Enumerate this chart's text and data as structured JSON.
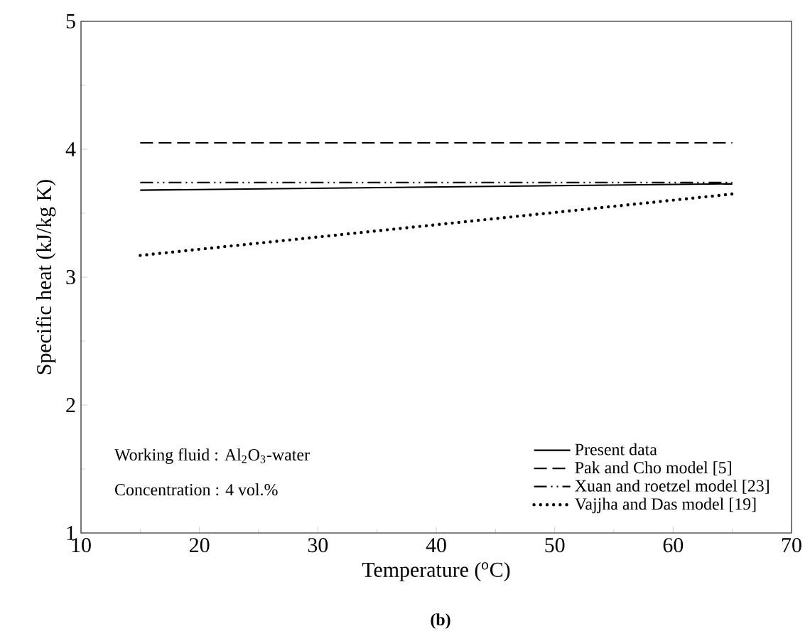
{
  "chart_data": {
    "type": "line",
    "xlabel": "Temperature ($^{o}$C)",
    "ylabel": "Specific heat (kJ/kg K)",
    "annotations": [
      "Working fluid : Al$_{2}$O$_{3}$-water",
      "Concentration : 4 vol.%",
      "(b)"
    ],
    "xlim": [
      10,
      70
    ],
    "xticks": [
      10,
      20,
      30,
      40,
      50,
      60,
      70
    ],
    "ylim": [
      1,
      5
    ],
    "yticks": [
      1,
      2,
      3,
      4,
      5
    ],
    "legend": "bottom right",
    "marker": "none",
    "x": [
      15,
      65
    ],
    "series": [
      {
        "name": "Present data",
        "color": "#000000",
        "line_style": "solid",
        "values": [
          3.68,
          3.73
        ]
      },
      {
        "name": "Pak and Cho model [5]",
        "color": "#000000",
        "line_style": "dashed",
        "values": [
          4.05,
          4.05
        ]
      },
      {
        "name": "Xuan and roetzel model [23]",
        "color": "#000000",
        "line_style": "dashdotted",
        "values": [
          3.74,
          3.74
        ]
      },
      {
        "name": "Vajjha and Das model [19]",
        "color": "#000000",
        "line_style": "dotted",
        "values": [
          3.17,
          3.65
        ]
      }
    ]
  }
}
